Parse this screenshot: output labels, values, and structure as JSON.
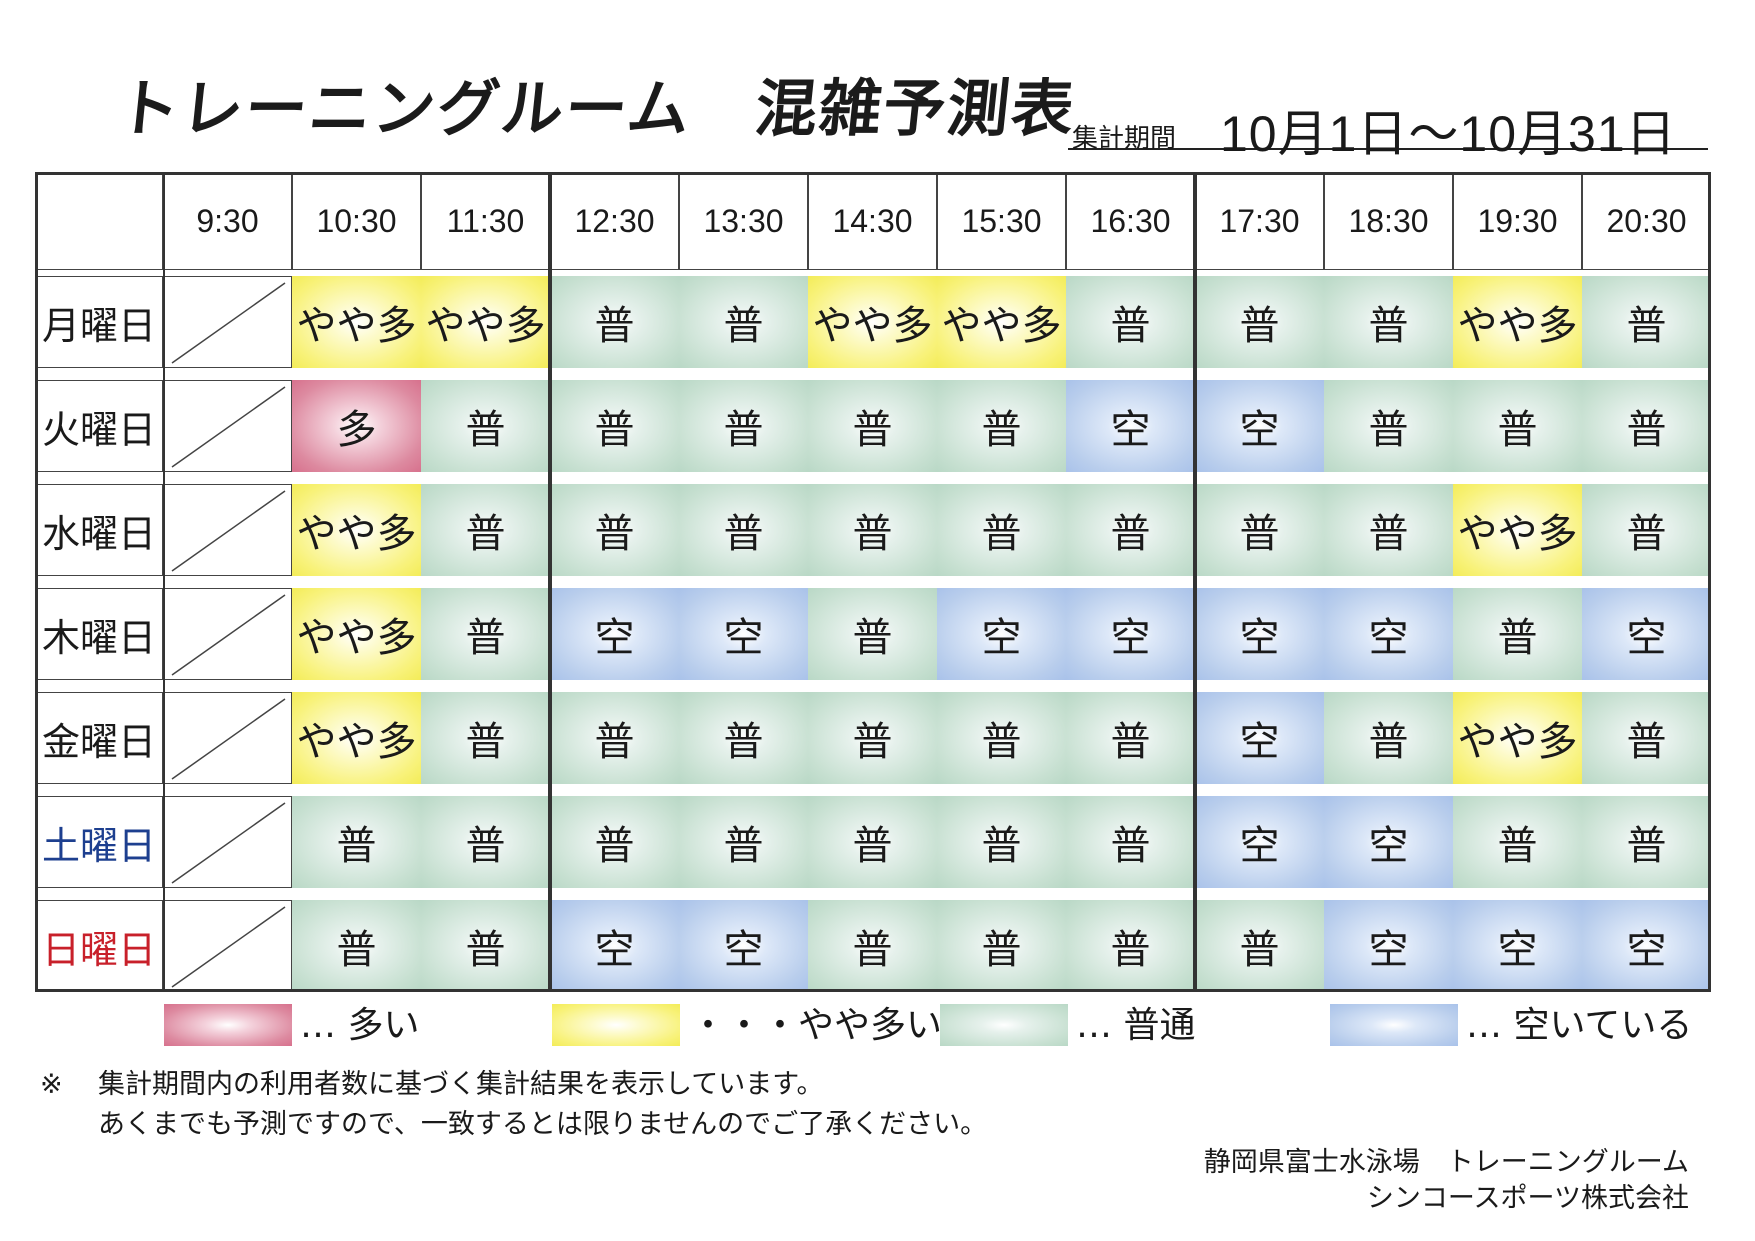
{
  "header": {
    "title": "トレーニングルーム",
    "subtitle": "混雑予測表",
    "period_label": "集計期間",
    "period_value": "10月1日～10月31日"
  },
  "times": [
    "9:30",
    "10:30",
    "11:30",
    "12:30",
    "13:30",
    "14:30",
    "15:30",
    "16:30",
    "17:30",
    "18:30",
    "19:30",
    "20:30"
  ],
  "rows": [
    {
      "day": "月曜日",
      "type": "weekday",
      "cells": [
        "",
        "やや多",
        "やや多",
        "普",
        "普",
        "やや多",
        "やや多",
        "普",
        "普",
        "普",
        "やや多",
        "普"
      ]
    },
    {
      "day": "火曜日",
      "type": "weekday",
      "cells": [
        "",
        "多",
        "普",
        "普",
        "普",
        "普",
        "普",
        "空",
        "空",
        "普",
        "普",
        "普"
      ]
    },
    {
      "day": "水曜日",
      "type": "weekday",
      "cells": [
        "",
        "やや多",
        "普",
        "普",
        "普",
        "普",
        "普",
        "普",
        "普",
        "普",
        "やや多",
        "普"
      ]
    },
    {
      "day": "木曜日",
      "type": "weekday",
      "cells": [
        "",
        "やや多",
        "普",
        "空",
        "空",
        "普",
        "空",
        "空",
        "空",
        "空",
        "普",
        "空"
      ]
    },
    {
      "day": "金曜日",
      "type": "weekday",
      "cells": [
        "",
        "やや多",
        "普",
        "普",
        "普",
        "普",
        "普",
        "普",
        "空",
        "普",
        "やや多",
        "普"
      ]
    },
    {
      "day": "土曜日",
      "type": "saturday",
      "cells": [
        "",
        "普",
        "普",
        "普",
        "普",
        "普",
        "普",
        "普",
        "空",
        "空",
        "普",
        "普"
      ]
    },
    {
      "day": "日曜日",
      "type": "sunday",
      "cells": [
        "",
        "普",
        "普",
        "空",
        "空",
        "普",
        "普",
        "普",
        "普",
        "空",
        "空",
        "空"
      ]
    }
  ],
  "level_colors": {
    "多": "#d7718d",
    "やや多": "#f3ec58",
    "普": "#b9d8c6",
    "空": "#a9c2ea"
  },
  "legend": [
    {
      "level": "多",
      "text": "… 多い"
    },
    {
      "level": "やや多",
      "text": "・・・やや多い"
    },
    {
      "level": "普",
      "text": "… 普通"
    },
    {
      "level": "空",
      "text": "… 空いている"
    }
  ],
  "notes": {
    "mark": "※",
    "line1": "集計期間内の利用者数に基づく集計結果を表示しています。",
    "line2": "あくまでも予測ですので、一致するとは限りませんのでご了承ください。"
  },
  "facility": {
    "line1": "静岡県富士水泳場　トレーニングルーム",
    "line2": "シンコースポーツ株式会社"
  }
}
